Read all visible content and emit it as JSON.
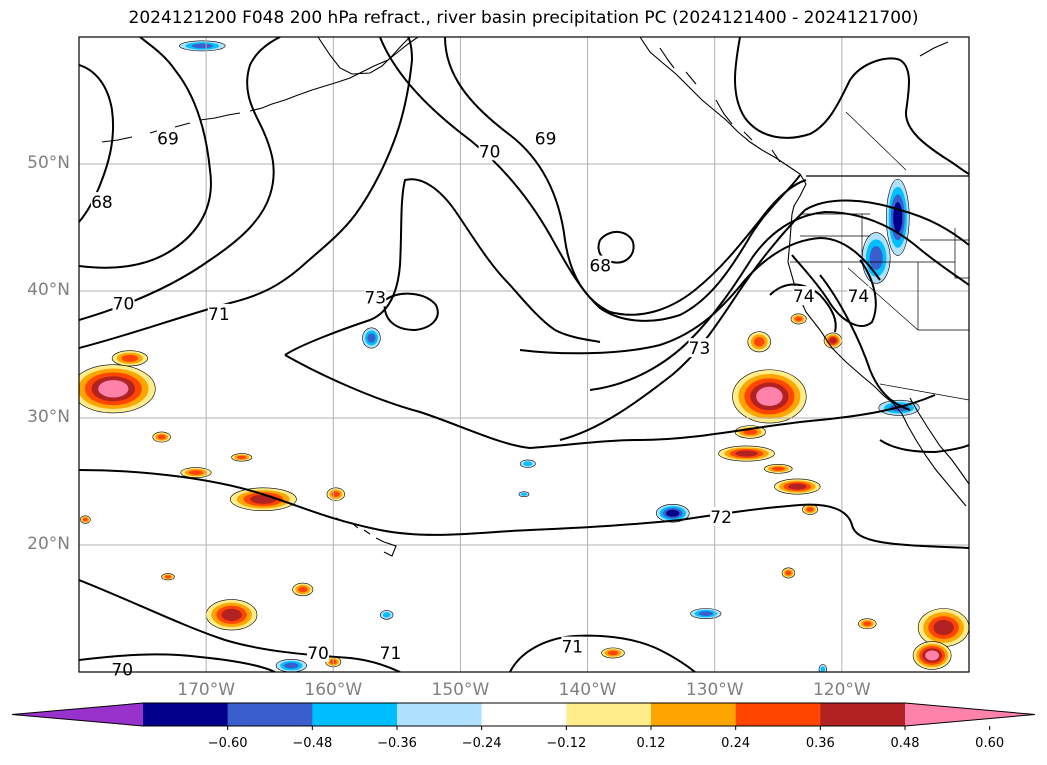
{
  "title": "2024121200 F048 200 hPa refract., river basin precipitation PC (2024121400 - 2024121700)",
  "map": {
    "lon_range": [
      -180,
      -110
    ],
    "lat_range": [
      10,
      60
    ],
    "lat_labels": [
      {
        "lat": 50,
        "text": "50°N"
      },
      {
        "lat": 40,
        "text": "40°N"
      },
      {
        "lat": 30,
        "text": "30°N"
      },
      {
        "lat": 20,
        "text": "20°N"
      }
    ],
    "lon_labels": [
      {
        "lon": -170,
        "text": "170°W"
      },
      {
        "lon": -160,
        "text": "160°W"
      },
      {
        "lon": -150,
        "text": "150°W"
      },
      {
        "lon": -140,
        "text": "140°W"
      },
      {
        "lon": -130,
        "text": "130°W"
      },
      {
        "lon": -120,
        "text": "120°W"
      }
    ],
    "gridlines": true,
    "contour_labels": [
      {
        "text": "69",
        "lon": -173.0,
        "lat": 52.0
      },
      {
        "text": "68",
        "lon": -178.2,
        "lat": 47.0
      },
      {
        "text": "70",
        "lon": -147.7,
        "lat": 51.0
      },
      {
        "text": "69",
        "lon": -143.3,
        "lat": 52.0
      },
      {
        "text": "68",
        "lon": -139.0,
        "lat": 42.0
      },
      {
        "text": "70",
        "lon": -176.5,
        "lat": 39.0
      },
      {
        "text": "71",
        "lon": -169.0,
        "lat": 38.2
      },
      {
        "text": "73",
        "lon": -156.7,
        "lat": 39.5
      },
      {
        "text": "73",
        "lon": -131.2,
        "lat": 35.5
      },
      {
        "text": "74",
        "lon": -123.0,
        "lat": 39.6
      },
      {
        "text": "74",
        "lon": -118.7,
        "lat": 39.6
      },
      {
        "text": "72",
        "lon": -129.5,
        "lat": 22.2
      },
      {
        "text": "71",
        "lon": -155.5,
        "lat": 11.5
      },
      {
        "text": "70",
        "lon": -161.2,
        "lat": 11.5
      },
      {
        "text": "71",
        "lon": -141.2,
        "lat": 12.0
      },
      {
        "text": "70",
        "lon": -176.6,
        "lat": 10.2
      }
    ],
    "shading": [
      {
        "sign": "pos",
        "level": 4,
        "lon": -177.3,
        "lat": 32.3,
        "rx": 3.3,
        "ry": 1.9
      },
      {
        "sign": "pos",
        "level": 2,
        "lon": -176.0,
        "lat": 34.7,
        "rx": 1.4,
        "ry": 0.6
      },
      {
        "sign": "pos",
        "level": 2,
        "lon": -173.5,
        "lat": 28.5,
        "rx": 0.7,
        "ry": 0.4
      },
      {
        "sign": "pos",
        "level": 3,
        "lon": -165.5,
        "lat": 23.6,
        "rx": 2.6,
        "ry": 0.9
      },
      {
        "sign": "pos",
        "level": 2,
        "lon": -170.8,
        "lat": 25.7,
        "rx": 1.2,
        "ry": 0.4
      },
      {
        "sign": "pos",
        "level": 2,
        "lon": -167.2,
        "lat": 26.9,
        "rx": 0.8,
        "ry": 0.3
      },
      {
        "sign": "pos",
        "level": 2,
        "lon": -159.8,
        "lat": 24.0,
        "rx": 0.7,
        "ry": 0.5
      },
      {
        "sign": "pos",
        "level": 3,
        "lon": -168.0,
        "lat": 14.5,
        "rx": 2.0,
        "ry": 1.2
      },
      {
        "sign": "pos",
        "level": 2,
        "lon": -162.4,
        "lat": 16.5,
        "rx": 0.8,
        "ry": 0.5
      },
      {
        "sign": "pos",
        "level": 2,
        "lon": -160.0,
        "lat": 10.8,
        "rx": 0.6,
        "ry": 0.4
      },
      {
        "sign": "pos",
        "level": 2,
        "lon": -173.0,
        "lat": 17.5,
        "rx": 0.5,
        "ry": 0.25
      },
      {
        "sign": "pos",
        "level": 2,
        "lon": -179.5,
        "lat": 22.0,
        "rx": 0.4,
        "ry": 0.3
      },
      {
        "sign": "pos",
        "level": 4,
        "lon": -125.7,
        "lat": 31.7,
        "rx": 2.9,
        "ry": 2.1
      },
      {
        "sign": "pos",
        "level": 3,
        "lon": -127.5,
        "lat": 27.2,
        "rx": 2.2,
        "ry": 0.6
      },
      {
        "sign": "pos",
        "level": 2,
        "lon": -127.2,
        "lat": 28.9,
        "rx": 1.2,
        "ry": 0.5
      },
      {
        "sign": "pos",
        "level": 3,
        "lon": -123.5,
        "lat": 24.6,
        "rx": 1.8,
        "ry": 0.6
      },
      {
        "sign": "pos",
        "level": 2,
        "lon": -125.0,
        "lat": 26.0,
        "rx": 1.1,
        "ry": 0.35
      },
      {
        "sign": "pos",
        "level": 3,
        "lon": -120.7,
        "lat": 36.1,
        "rx": 0.7,
        "ry": 0.6
      },
      {
        "sign": "pos",
        "level": 2,
        "lon": -123.4,
        "lat": 37.8,
        "rx": 0.6,
        "ry": 0.4
      },
      {
        "sign": "pos",
        "level": 2,
        "lon": -126.5,
        "lat": 36.0,
        "rx": 0.9,
        "ry": 0.8
      },
      {
        "sign": "pos",
        "level": 2,
        "lon": -122.5,
        "lat": 22.8,
        "rx": 0.6,
        "ry": 0.4
      },
      {
        "sign": "pos",
        "level": 2,
        "lon": -124.2,
        "lat": 17.8,
        "rx": 0.5,
        "ry": 0.4
      },
      {
        "sign": "pos",
        "level": 3,
        "lon": -112.0,
        "lat": 13.5,
        "rx": 2.0,
        "ry": 1.5
      },
      {
        "sign": "pos",
        "level": 4,
        "lon": -112.9,
        "lat": 11.3,
        "rx": 1.5,
        "ry": 1.1
      },
      {
        "sign": "pos",
        "level": 2,
        "lon": -118.0,
        "lat": 13.8,
        "rx": 0.7,
        "ry": 0.4
      },
      {
        "sign": "pos",
        "level": 2,
        "lon": -138.0,
        "lat": 11.5,
        "rx": 0.9,
        "ry": 0.4
      },
      {
        "sign": "neg",
        "level": 3,
        "lon": -115.6,
        "lat": 45.8,
        "rx": 0.9,
        "ry": 3.0
      },
      {
        "sign": "neg",
        "level": 2,
        "lon": -117.3,
        "lat": 42.6,
        "rx": 1.1,
        "ry": 2.0
      },
      {
        "sign": "neg",
        "level": 2,
        "lon": -115.5,
        "lat": 30.8,
        "rx": 1.6,
        "ry": 0.6
      },
      {
        "sign": "neg",
        "level": 3,
        "lon": -133.3,
        "lat": 22.5,
        "rx": 1.3,
        "ry": 0.7
      },
      {
        "sign": "neg",
        "level": 2,
        "lon": -130.7,
        "lat": 14.6,
        "rx": 1.2,
        "ry": 0.4
      },
      {
        "sign": "neg",
        "level": 2,
        "lon": -157.0,
        "lat": 36.3,
        "rx": 0.7,
        "ry": 0.8
      },
      {
        "sign": "neg",
        "level": 2,
        "lon": -170.3,
        "lat": 59.3,
        "rx": 1.8,
        "ry": 0.4
      },
      {
        "sign": "neg",
        "level": 2,
        "lon": -163.3,
        "lat": 10.5,
        "rx": 1.2,
        "ry": 0.5
      },
      {
        "sign": "neg",
        "level": 1,
        "lon": -144.7,
        "lat": 26.4,
        "rx": 0.6,
        "ry": 0.3
      },
      {
        "sign": "neg",
        "level": 1,
        "lon": -145.0,
        "lat": 24.0,
        "rx": 0.4,
        "ry": 0.2
      },
      {
        "sign": "neg",
        "level": 1,
        "lon": -155.8,
        "lat": 14.5,
        "rx": 0.5,
        "ry": 0.35
      },
      {
        "sign": "neg",
        "level": 1,
        "lon": -121.5,
        "lat": 10.2,
        "rx": 0.3,
        "ry": 0.4
      }
    ]
  },
  "colorbar": {
    "colors": [
      "#9932CC",
      "#00008B",
      "#3A5FCD",
      "#00BFFF",
      "#B0E2FF",
      "#FFFFFF",
      "#FFEC8B",
      "#FFA500",
      "#FF4500",
      "#B22222",
      "#FF82AB"
    ],
    "tick_labels": [
      "−0.60",
      "−0.48",
      "−0.36",
      "−0.24",
      "−0.12",
      "0.12",
      "0.24",
      "0.36",
      "0.48",
      "0.60"
    ]
  },
  "colors": {
    "contour": "#000000",
    "grid": "#b0b0b0",
    "coast": "#000000"
  }
}
